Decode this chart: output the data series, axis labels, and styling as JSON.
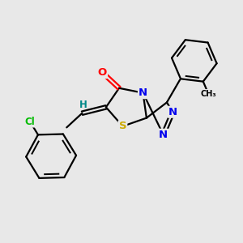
{
  "background_color": "#e8e8e8",
  "bond_color": "#000000",
  "atom_colors": {
    "N": "#0000ee",
    "O": "#ff0000",
    "S": "#ccaa00",
    "Cl": "#00bb00",
    "H": "#008888",
    "C": "#000000"
  },
  "figsize": [
    3.0,
    3.0
  ],
  "dpi": 100
}
